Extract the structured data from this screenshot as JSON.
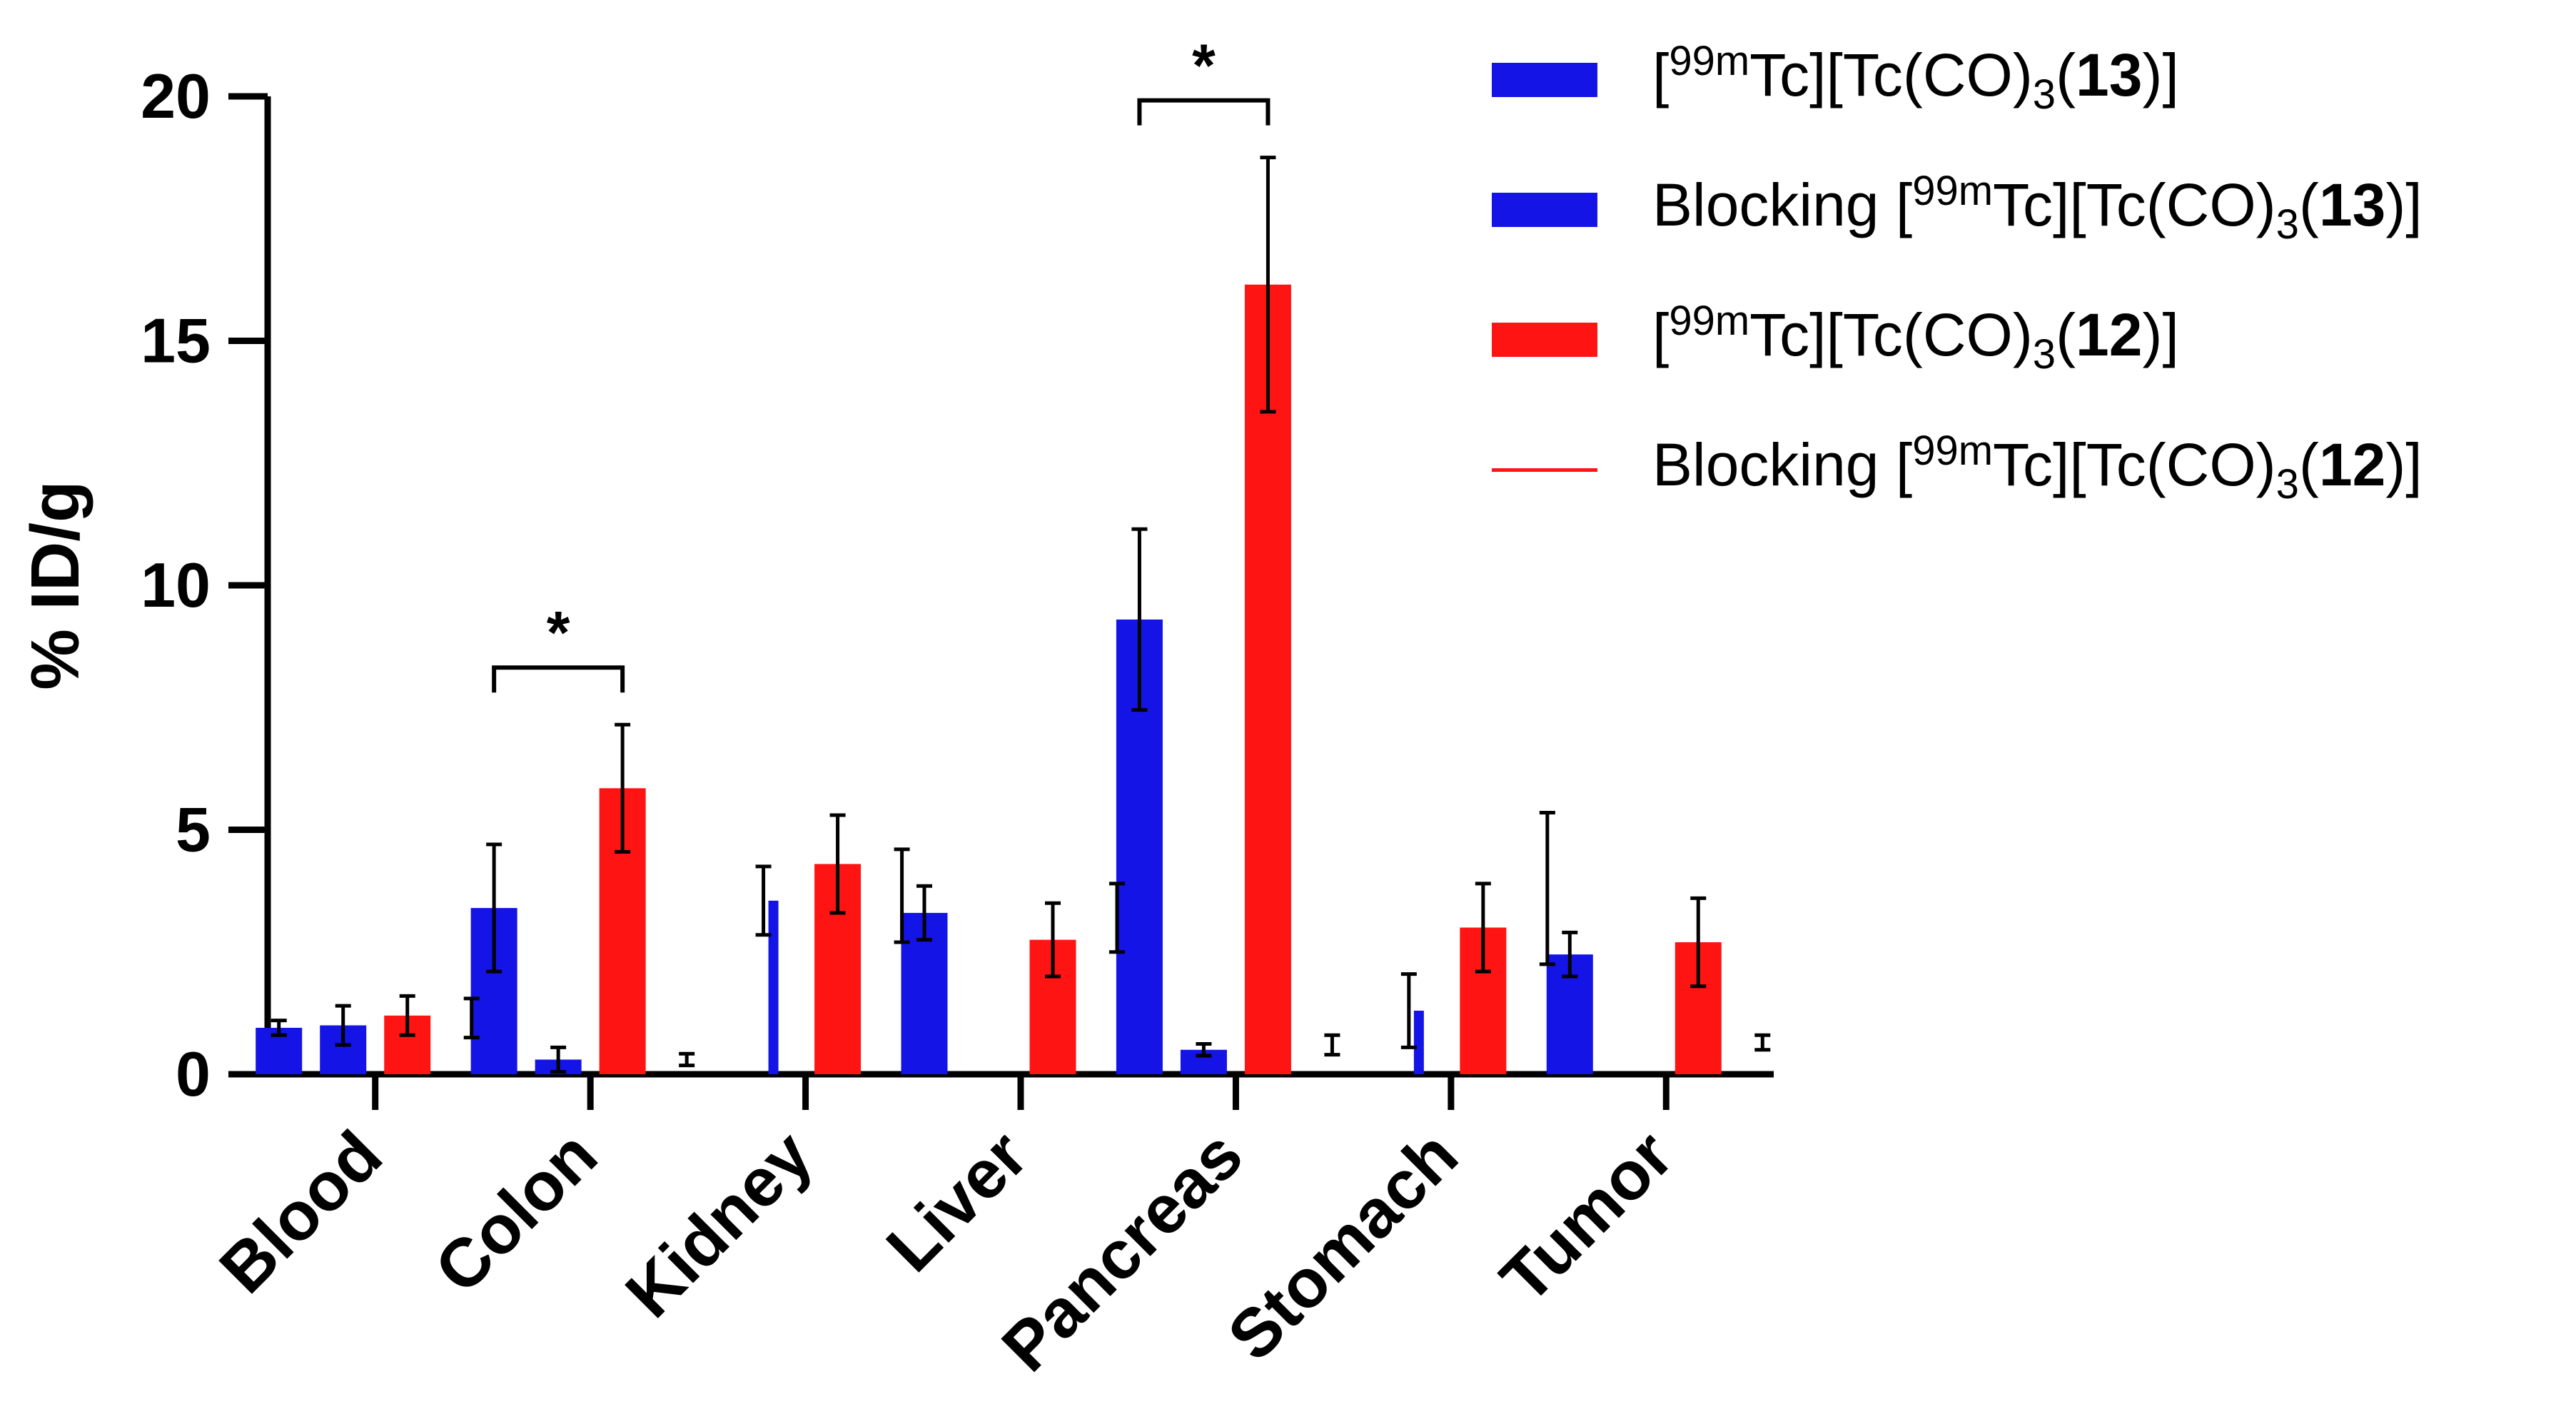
{
  "chart_data": {
    "type": "bar",
    "title": "",
    "xlabel": "",
    "ylabel": "% ID/g",
    "ylim": [
      0,
      20
    ],
    "yticks": [
      "0",
      "5",
      "10",
      "15",
      "20"
    ],
    "categories": [
      "Blood",
      "Colon",
      "Kidney",
      "Liver",
      "Pancreas",
      "Stomach",
      "Tumor"
    ],
    "colors": {
      "series1": "#1414e6",
      "series2": "#1414e6",
      "series3": "#ff1414",
      "series4": "#ff1414",
      "error": "#000000"
    },
    "series": [
      {
        "name": "[99mTc][Tc(CO)3(13)]",
        "values": [
          0.95,
          3.4,
          0.0,
          3.3,
          9.3,
          0.0,
          2.45
        ],
        "errors": [
          0.15,
          1.3,
          0.0,
          0.55,
          1.85,
          0.0,
          0.45
        ]
      },
      {
        "name": "Blocking [99mTc][Tc(CO)3(13)]",
        "values": [
          1.0,
          0.3,
          3.55,
          0.0,
          0.5,
          1.3,
          0.0
        ],
        "errors": [
          0.4,
          0.25,
          0.7,
          0.0,
          0.12,
          0.75,
          0.0
        ]
      },
      {
        "name": "[99mTc][Tc(CO)3(12)]",
        "values": [
          1.2,
          5.85,
          4.3,
          2.75,
          16.15,
          3.0,
          2.7
        ],
        "errors": [
          0.4,
          1.3,
          1.0,
          0.75,
          2.6,
          0.9,
          0.9
        ]
      },
      {
        "name": "Blocking [99mTc][Tc(CO)3(12)]",
        "values": [
          1.15,
          0.3,
          3.65,
          3.2,
          0.6,
          3.8,
          0.65
        ],
        "errors": [
          0.4,
          0.12,
          0.95,
          0.7,
          0.2,
          1.55,
          0.15
        ]
      }
    ],
    "significance": [
      {
        "category": "Colon",
        "label": "*"
      },
      {
        "category": "Pancreas",
        "label": "*"
      }
    ],
    "legend_position": "top-right"
  },
  "legend": [
    {
      "prefix": "[",
      "sup": "99m",
      "mid": "Tc][Tc(CO)",
      "sub": "3",
      "open": "(",
      "bold": "13",
      "close": ")]"
    },
    {
      "prefix": "Blocking [",
      "sup": "99m",
      "mid": "Tc][Tc(CO)",
      "sub": "3",
      "open": "(",
      "bold": "13",
      "close": ")]"
    },
    {
      "prefix": "[",
      "sup": "99m",
      "mid": "Tc][Tc(CO)",
      "sub": "3",
      "open": "(",
      "bold": "12",
      "close": ")]"
    },
    {
      "prefix": "Blocking [",
      "sup": "99m",
      "mid": "Tc][Tc(CO)",
      "sub": "3",
      "open": "(",
      "bold": "12",
      "close": ")]"
    }
  ]
}
